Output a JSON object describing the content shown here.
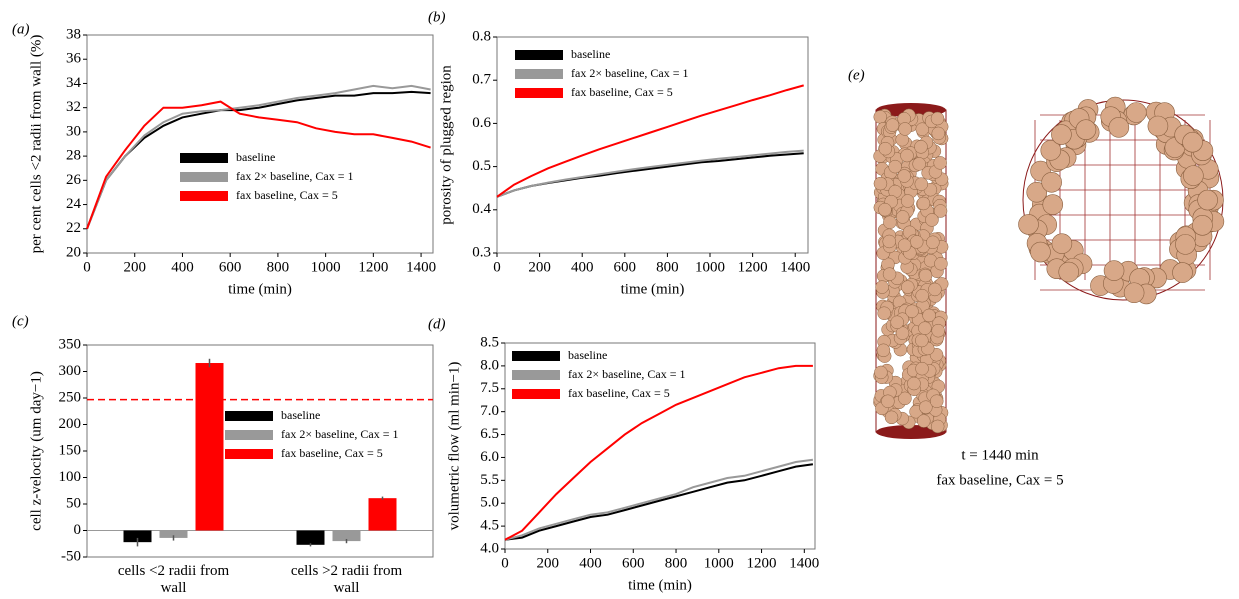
{
  "chart_data": [
    {
      "type": "line",
      "panel": "(a)",
      "xlabel": "time (min)",
      "ylabel": "per cent cells <2 radii from wall (%)",
      "x": [
        0,
        80,
        160,
        240,
        320,
        400,
        480,
        560,
        640,
        720,
        800,
        880,
        960,
        1040,
        1120,
        1200,
        1280,
        1360,
        1440
      ],
      "series": [
        {
          "name": "baseline",
          "color": "#000000",
          "values": [
            22,
            26,
            28,
            29.5,
            30.5,
            31.2,
            31.5,
            31.8,
            31.8,
            32,
            32.3,
            32.6,
            32.8,
            33,
            33,
            33.2,
            33.2,
            33.3,
            33.2
          ]
        },
        {
          "name": "fax 2× baseline, Cax = 1",
          "color": "#999999",
          "values": [
            22,
            26,
            28,
            29.7,
            30.8,
            31.5,
            31.7,
            31.8,
            32,
            32.2,
            32.5,
            32.8,
            33,
            33.2,
            33.5,
            33.8,
            33.6,
            33.8,
            33.5
          ]
        },
        {
          "name": "fax baseline, Cax = 5",
          "color": "#ff0000",
          "values": [
            22,
            26.3,
            28.5,
            30.5,
            32,
            32,
            32.2,
            32.5,
            31.5,
            31.2,
            31,
            30.8,
            30.3,
            30,
            29.8,
            29.8,
            29.5,
            29.2,
            28.7
          ]
        }
      ],
      "xlim": [
        0,
        1450
      ],
      "ylim": [
        20,
        38
      ],
      "xticks": [
        0,
        200,
        400,
        600,
        800,
        1000,
        1200,
        1400
      ],
      "yticks": [
        20,
        22,
        24,
        26,
        28,
        30,
        32,
        34,
        36,
        38
      ]
    },
    {
      "type": "line",
      "panel": "(b)",
      "xlabel": "time (min)",
      "ylabel": "porosity of plugged region",
      "x": [
        0,
        80,
        160,
        240,
        320,
        400,
        480,
        560,
        640,
        720,
        800,
        880,
        960,
        1040,
        1120,
        1200,
        1280,
        1360,
        1440
      ],
      "series": [
        {
          "name": "baseline",
          "color": "#000000",
          "values": [
            0.43,
            0.445,
            0.455,
            0.462,
            0.468,
            0.474,
            0.479,
            0.485,
            0.49,
            0.495,
            0.5,
            0.505,
            0.51,
            0.513,
            0.517,
            0.521,
            0.525,
            0.528,
            0.531
          ]
        },
        {
          "name": "fax 2× baseline, Cax = 1",
          "color": "#999999",
          "values": [
            0.43,
            0.445,
            0.455,
            0.463,
            0.47,
            0.476,
            0.482,
            0.488,
            0.494,
            0.499,
            0.504,
            0.509,
            0.514,
            0.518,
            0.522,
            0.526,
            0.53,
            0.534,
            0.537
          ]
        },
        {
          "name": "fax baseline, Cax = 5",
          "color": "#ff0000",
          "values": [
            0.43,
            0.458,
            0.478,
            0.496,
            0.511,
            0.526,
            0.54,
            0.553,
            0.566,
            0.579,
            0.592,
            0.605,
            0.618,
            0.63,
            0.642,
            0.654,
            0.665,
            0.677,
            0.688
          ]
        }
      ],
      "xlim": [
        0,
        1460
      ],
      "ylim": [
        0.3,
        0.8
      ],
      "xticks": [
        0,
        200,
        400,
        600,
        800,
        1000,
        1200,
        1400
      ],
      "yticks": [
        0.3,
        0.4,
        0.5,
        0.6,
        0.7,
        0.8
      ]
    },
    {
      "type": "bar",
      "panel": "(c)",
      "ylabel": "cell z-velocity (um day−1)",
      "categories": [
        "cells <2 radii from wall",
        "cells >2 radii from wall"
      ],
      "series": [
        {
          "name": "baseline",
          "color": "#000000",
          "values": [
            -22,
            -27
          ],
          "errors": [
            8,
            3
          ]
        },
        {
          "name": "fax 2× baseline, Cax = 1",
          "color": "#999999",
          "values": [
            -14,
            -20
          ],
          "errors": [
            5,
            4
          ]
        },
        {
          "name": "fax baseline, Cax = 5",
          "color": "#ff0000",
          "values": [
            316,
            61
          ],
          "errors": [
            8,
            3
          ]
        }
      ],
      "hline": 247,
      "ylim": [
        -50,
        350
      ],
      "yticks": [
        -50,
        0,
        50,
        100,
        150,
        200,
        250,
        300,
        350
      ]
    },
    {
      "type": "line",
      "panel": "(d)",
      "xlabel": "time (min)",
      "ylabel": "volumetric flow (ml min−1)",
      "x": [
        0,
        80,
        160,
        240,
        320,
        400,
        480,
        560,
        640,
        720,
        800,
        880,
        960,
        1040,
        1120,
        1200,
        1280,
        1360,
        1440
      ],
      "series": [
        {
          "name": "baseline",
          "color": "#000000",
          "values": [
            4.2,
            4.25,
            4.4,
            4.5,
            4.6,
            4.7,
            4.75,
            4.85,
            4.95,
            5.05,
            5.15,
            5.25,
            5.35,
            5.45,
            5.5,
            5.6,
            5.7,
            5.8,
            5.85
          ]
        },
        {
          "name": "fax 2× baseline, Cax = 1",
          "color": "#999999",
          "values": [
            4.2,
            4.3,
            4.45,
            4.55,
            4.65,
            4.75,
            4.8,
            4.9,
            5.0,
            5.1,
            5.2,
            5.35,
            5.45,
            5.55,
            5.6,
            5.7,
            5.8,
            5.9,
            5.95
          ]
        },
        {
          "name": "fax baseline, Cax = 5",
          "color": "#ff0000",
          "values": [
            4.2,
            4.4,
            4.8,
            5.2,
            5.55,
            5.9,
            6.2,
            6.5,
            6.75,
            6.95,
            7.15,
            7.3,
            7.45,
            7.6,
            7.75,
            7.85,
            7.95,
            8.0,
            8.0
          ]
        }
      ],
      "xlim": [
        0,
        1450
      ],
      "ylim": [
        4.0,
        8.5
      ],
      "xticks": [
        0,
        200,
        400,
        600,
        800,
        1000,
        1200,
        1400
      ],
      "yticks": [
        {
          "value": 4,
          "label": "4.0"
        },
        4.5,
        {
          "value": 5,
          "label": "5.0"
        },
        5.5,
        {
          "value": 6,
          "label": "6.0"
        },
        6.5,
        {
          "value": 7,
          "label": "7.0"
        },
        7.5,
        {
          "value": 8,
          "label": "8.0"
        },
        8.5
      ]
    }
  ],
  "figure_e": {
    "panel": "(e)",
    "caption": [
      "t = 1440 min",
      "fax baseline, Cax = 5"
    ]
  }
}
